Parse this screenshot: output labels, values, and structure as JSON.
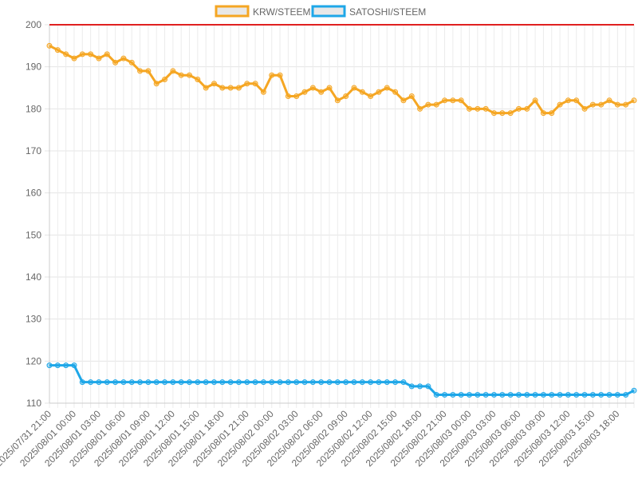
{
  "chart_data": {
    "type": "line",
    "title": "",
    "xlabel": "",
    "ylabel": "",
    "ylim": [
      110,
      200
    ],
    "y_ticks": [
      110,
      120,
      130,
      140,
      150,
      160,
      170,
      180,
      190,
      200
    ],
    "x_tick_labels": [
      "2025/07/31 21:00",
      "2025/08/01 00:00",
      "2025/08/01 03:00",
      "2025/08/01 06:00",
      "2025/08/01 09:00",
      "2025/08/01 12:00",
      "2025/08/01 15:00",
      "2025/08/01 18:00",
      "2025/08/01 21:00",
      "2025/08/02 00:00",
      "2025/08/02 03:00",
      "2025/08/02 06:00",
      "2025/08/02 09:00",
      "2025/08/02 12:00",
      "2025/08/02 15:00",
      "2025/08/02 18:00",
      "2025/08/02 21:00",
      "2025/08/03 00:00",
      "2025/08/03 03:00",
      "2025/08/03 06:00",
      "2025/08/03 09:00",
      "2025/08/03 12:00",
      "2025/08/03 15:00",
      "2025/08/03 18:00"
    ],
    "x_interval_hours": 1,
    "grid": true,
    "legend_position": "top",
    "series": [
      {
        "name": "KRW/STEEM",
        "color": "#f5a623",
        "values": [
          195,
          194,
          193,
          192,
          193,
          193,
          192,
          193,
          191,
          192,
          191,
          189,
          189,
          186,
          187,
          189,
          188,
          188,
          187,
          185,
          186,
          185,
          185,
          185,
          186,
          186,
          184,
          188,
          188,
          183,
          183,
          184,
          185,
          184,
          185,
          182,
          183,
          185,
          184,
          183,
          184,
          185,
          184,
          182,
          183,
          180,
          181,
          181,
          182,
          182,
          182,
          180,
          180,
          180,
          179,
          179,
          179,
          180,
          180,
          182,
          179,
          179,
          181,
          182,
          182,
          180,
          181,
          181,
          182,
          181,
          181,
          182
        ]
      },
      {
        "name": "SATOSHI/STEEM",
        "color": "#1ea7e8",
        "values": [
          119,
          119,
          119,
          119,
          115,
          115,
          115,
          115,
          115,
          115,
          115,
          115,
          115,
          115,
          115,
          115,
          115,
          115,
          115,
          115,
          115,
          115,
          115,
          115,
          115,
          115,
          115,
          115,
          115,
          115,
          115,
          115,
          115,
          115,
          115,
          115,
          115,
          115,
          115,
          115,
          115,
          115,
          115,
          115,
          114,
          114,
          114,
          112,
          112,
          112,
          112,
          112,
          112,
          112,
          112,
          112,
          112,
          112,
          112,
          112,
          112,
          112,
          112,
          112,
          112,
          112,
          112,
          112,
          112,
          112,
          112,
          113
        ]
      }
    ],
    "reference_line": {
      "value": 200,
      "color": "#e02020"
    }
  }
}
